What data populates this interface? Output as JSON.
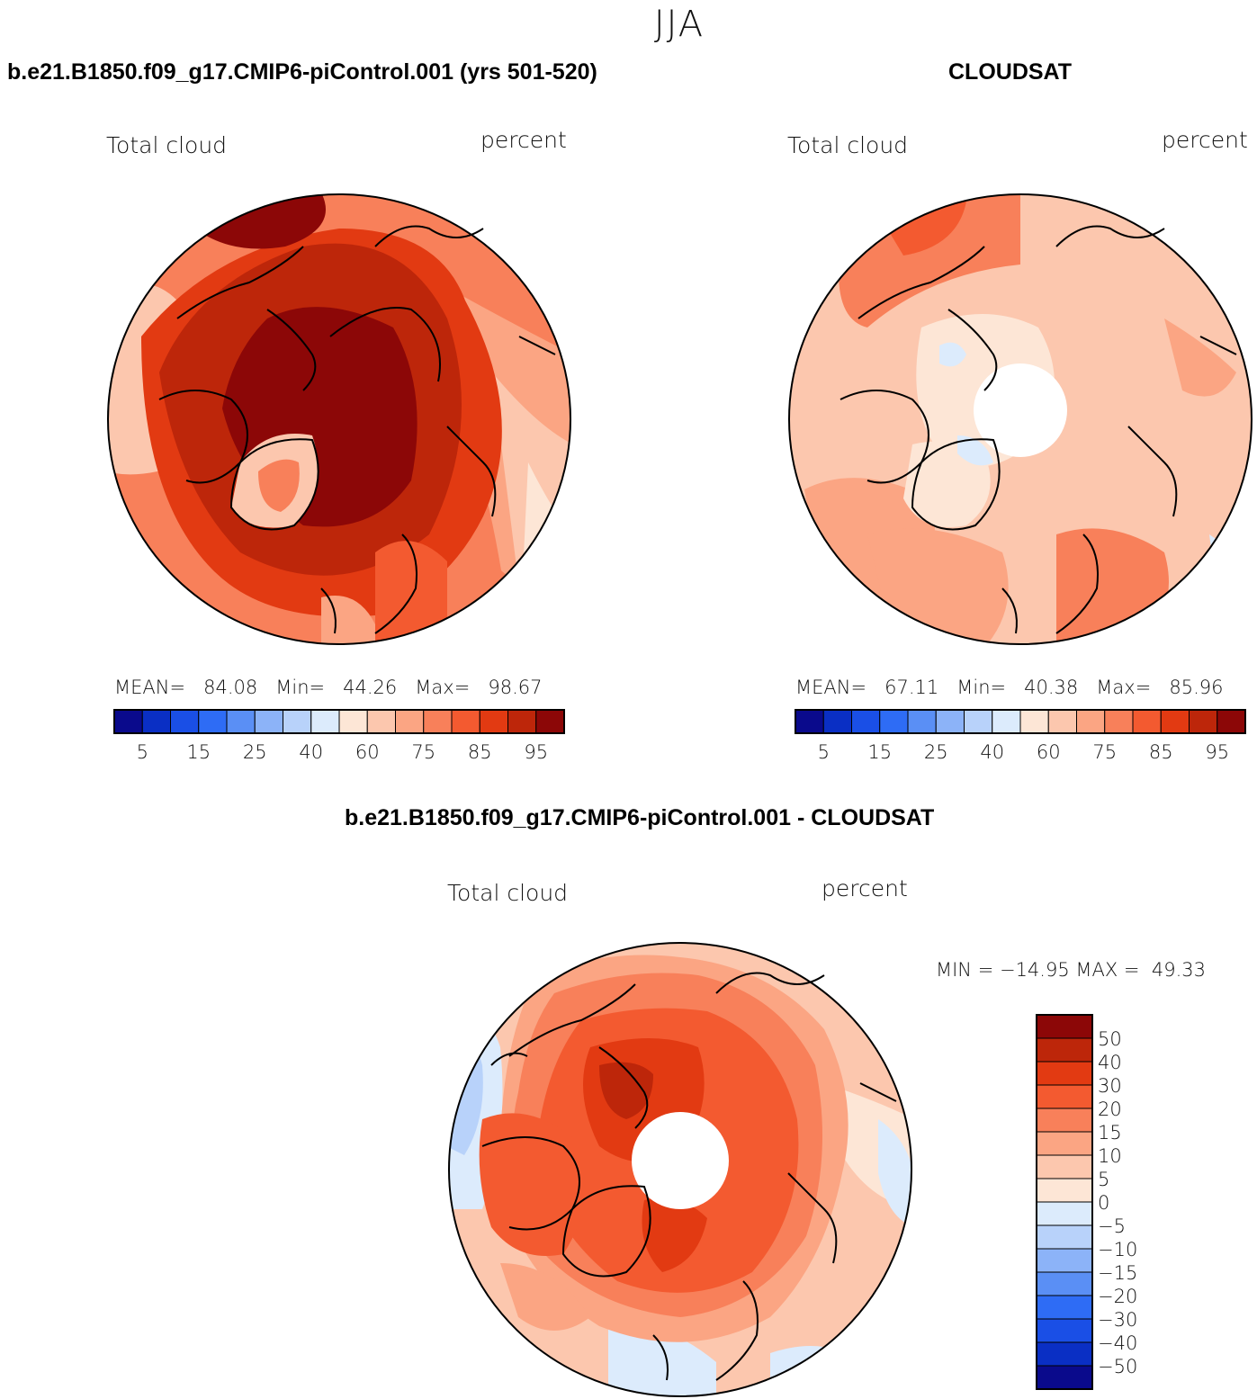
{
  "figure": {
    "title": "JJA",
    "panels": [
      {
        "id": "model",
        "title": "b.e21.B1850.f09_g17.CMIP6-piControl.001 (yrs 501-520)",
        "variable": "Total cloud",
        "units": "percent",
        "stats": {
          "mean_label": "MEAN=",
          "mean": "84.08",
          "min_label": "Min=",
          "min": "44.26",
          "max_label": "Max=",
          "max": "98.67"
        }
      },
      {
        "id": "obs",
        "title": "CLOUDSAT",
        "variable": "Total cloud",
        "units": "percent",
        "stats": {
          "mean_label": "MEAN=",
          "mean": "67.11",
          "min_label": "Min=",
          "min": "40.38",
          "max_label": "Max=",
          "max": "85.96"
        }
      },
      {
        "id": "diff",
        "title": "b.e21.B1850.f09_g17.CMIP6-piControl.001 - CLOUDSAT",
        "variable": "Total cloud",
        "units": "percent",
        "stats_text": "MIN = −14.95 MAX =  49.33"
      }
    ],
    "colorbar_abs": {
      "colors": [
        "#0a0a8c",
        "#0a2fc4",
        "#1a4fe6",
        "#2e6cf5",
        "#5a8ff5",
        "#8cb3f8",
        "#b8d2fa",
        "#dcebfc",
        "#fde6d6",
        "#fcc7ae",
        "#fba583",
        "#f8805a",
        "#f35a30",
        "#e23a12",
        "#bd260a",
        "#8c0707"
      ],
      "tick_labels": [
        "5",
        "15",
        "25",
        "40",
        "60",
        "75",
        "85",
        "95"
      ]
    },
    "colorbar_diff": {
      "colors": [
        "#8c0707",
        "#bd260a",
        "#e23a12",
        "#f35a30",
        "#f8805a",
        "#fba583",
        "#fcc7ae",
        "#fde6d6",
        "#dcebfc",
        "#b8d2fa",
        "#8cb3f8",
        "#5a8ff5",
        "#2e6cf5",
        "#1a4fe6",
        "#0a2fc4",
        "#0a0a8c"
      ],
      "tick_labels": [
        "50",
        "40",
        "30",
        "20",
        "15",
        "10",
        "5",
        "0",
        "−5",
        "−10",
        "−15",
        "−20",
        "−30",
        "−40",
        "−50"
      ]
    }
  }
}
